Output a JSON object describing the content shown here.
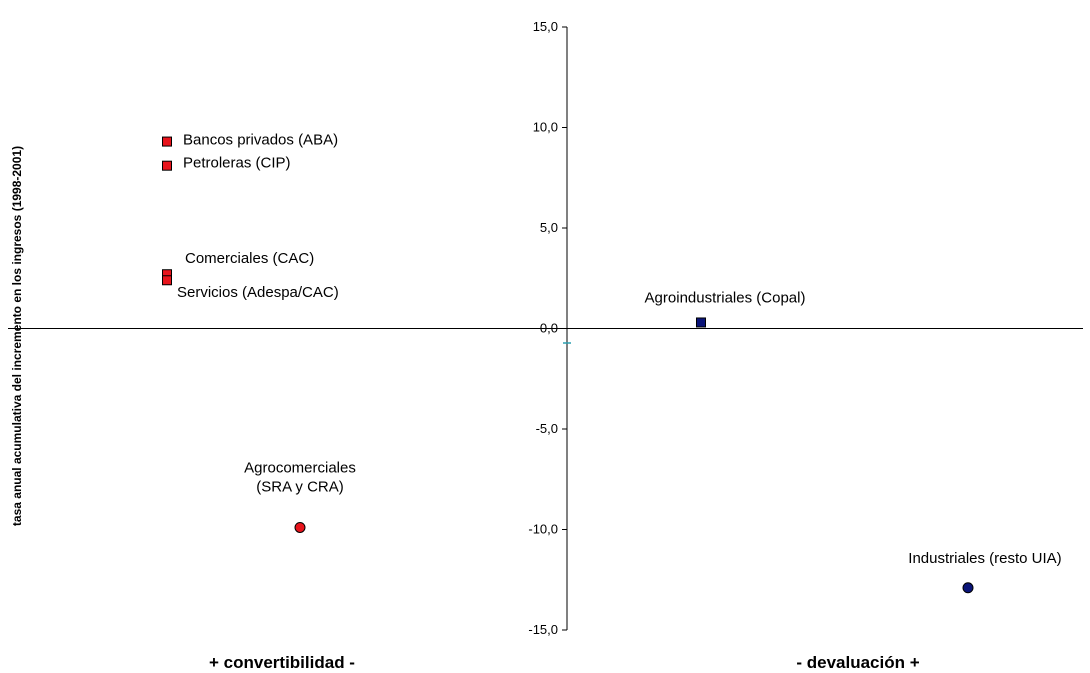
{
  "chart_data": {
    "type": "scatter",
    "title": "",
    "ylabel": "tasa anual acumulativa del incremento en los ingresos (1998-2001)",
    "xlabel_left": "+   convertibilidad   -",
    "xlabel_right": "-   devaluación   +",
    "ylim": [
      -15,
      15
    ],
    "yticks": [
      {
        "value": 15,
        "label": "15,0"
      },
      {
        "value": 10,
        "label": "10,0"
      },
      {
        "value": 5,
        "label": "5,0"
      },
      {
        "value": 0,
        "label": "0,0"
      },
      {
        "value": -5,
        "label": "-5,0"
      },
      {
        "value": -10,
        "label": "-10,0"
      },
      {
        "value": -15,
        "label": "-15,0"
      }
    ],
    "grid": false,
    "legend": "none",
    "colors": {
      "convertibilidad": "#e8141c",
      "devaluacion": "#0a1478"
    },
    "points": [
      {
        "label": "Bancos privados (ABA)",
        "y": 9.3,
        "side": "convertibilidad",
        "marker": "square"
      },
      {
        "label": "Petroleras (CIP)",
        "y": 8.1,
        "side": "convertibilidad",
        "marker": "square"
      },
      {
        "label": "Comerciales (CAC)",
        "y": 2.7,
        "side": "convertibilidad",
        "marker": "square"
      },
      {
        "label": "Servicios (Adespa/CAC)",
        "y": 2.4,
        "side": "convertibilidad",
        "marker": "square"
      },
      {
        "label": "Agrocomerciales\n(SRA y CRA)",
        "y": -9.9,
        "side": "convertibilidad",
        "marker": "circle"
      },
      {
        "label": "Agroindustriales (Copal)",
        "y": 0.3,
        "side": "devaluacion",
        "marker": "square"
      },
      {
        "label": "Industriales (resto UIA)",
        "y": -12.9,
        "side": "devaluacion",
        "marker": "circle"
      }
    ]
  }
}
